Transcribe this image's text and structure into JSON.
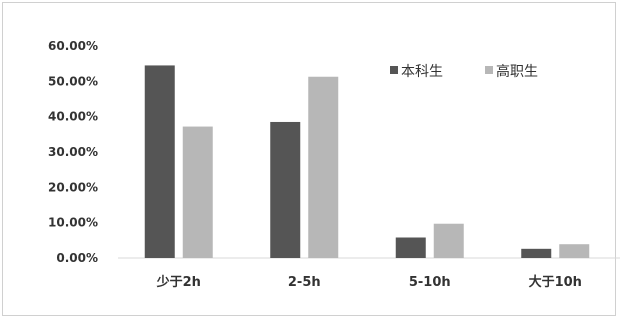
{
  "chart_data": {
    "type": "bar",
    "categories": [
      "少于2h",
      "2-5h",
      "5-10h",
      "大于10h"
    ],
    "series": [
      {
        "name": "本科生",
        "values": [
          54.5,
          38.5,
          5.8,
          2.6
        ],
        "color": "#555555"
      },
      {
        "name": "高职生",
        "values": [
          37.2,
          51.3,
          9.7,
          3.9
        ],
        "color": "#b7b7b7"
      }
    ],
    "ylim": [
      0,
      60
    ],
    "yticks": [
      "0.00%",
      "10.00%",
      "20.00%",
      "30.00%",
      "40.00%",
      "50.00%",
      "60.00%"
    ],
    "title": "",
    "xlabel": "",
    "ylabel": "",
    "legend": "top-right",
    "grid": false
  }
}
